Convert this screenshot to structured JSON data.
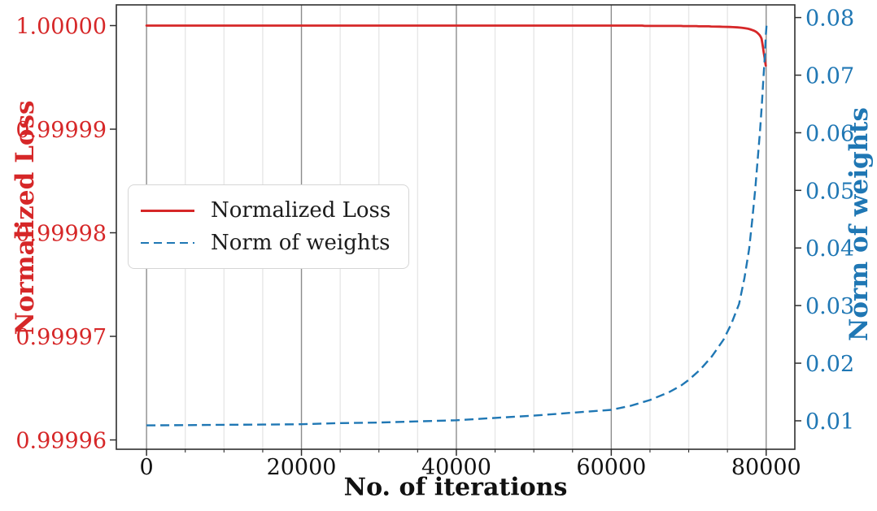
{
  "chart_data": {
    "type": "line",
    "title": "",
    "xlabel": "No. of iterations",
    "ylabel_left": "Normalized Loss",
    "ylabel_right": "Norm of weights",
    "xlim": [
      -3900,
      83700
    ],
    "ylim_left": [
      0.9999591,
      1.000002
    ],
    "ylim_right": [
      0.00506,
      0.0822
    ],
    "x_ticks": {
      "values": [
        0,
        20000,
        40000,
        60000,
        80000
      ],
      "labels": [
        "0",
        "20000",
        "40000",
        "60000",
        "80000"
      ]
    },
    "x_minor_ticks": [
      5000,
      10000,
      15000,
      25000,
      30000,
      35000,
      45000,
      50000,
      55000,
      65000,
      70000,
      75000
    ],
    "y_ticks_left": {
      "values": [
        1.0,
        0.99999,
        0.99998,
        0.99997,
        0.99996
      ],
      "labels": [
        "1.00000",
        "0.99999",
        "0.99998",
        "0.99997",
        "0.99996"
      ]
    },
    "y_ticks_right": {
      "values": [
        0.08,
        0.07,
        0.06,
        0.05,
        0.04,
        0.03,
        0.02,
        0.01
      ],
      "labels": [
        "0.08",
        "0.07",
        "0.06",
        "0.05",
        "0.04",
        "0.03",
        "0.02",
        "0.01"
      ]
    },
    "grid": {
      "axis": "x",
      "major": true,
      "minor": true
    },
    "colors": {
      "loss": "#d62728",
      "weights": "#1f77b4",
      "grid_major": "#8c8c8c",
      "grid_minor": "#e7e7e7",
      "spine": "#2e2e2e",
      "x_tick_label": "#111111",
      "legend_border": "#d6d6d6"
    },
    "legend": {
      "position": "upper left",
      "entries": [
        {
          "label": "Normalized Loss",
          "color": "#d62728",
          "style": "solid"
        },
        {
          "label": "Norm of weights",
          "color": "#1f77b4",
          "style": "dashed"
        }
      ]
    },
    "series": [
      {
        "name": "Normalized Loss",
        "axis": "left",
        "color": "#d62728",
        "style": "solid",
        "width": 2.8,
        "points": [
          [
            0,
            1.0
          ],
          [
            50000,
            1.0
          ],
          [
            64000,
            1.0
          ],
          [
            64300,
            0.99999997
          ],
          [
            69000,
            0.99999997
          ],
          [
            69300,
            0.99999995
          ],
          [
            71000,
            0.99999995
          ],
          [
            71300,
            0.99999993
          ],
          [
            72600,
            0.99999993
          ],
          [
            72900,
            0.99999991
          ],
          [
            74000,
            0.9999999
          ],
          [
            74400,
            0.99999988
          ],
          [
            75300,
            0.99999987
          ],
          [
            75700,
            0.99999985
          ],
          [
            76300,
            0.99999983
          ],
          [
            76800,
            0.9999998
          ],
          [
            77200,
            0.99999976
          ],
          [
            77600,
            0.99999971
          ],
          [
            77900,
            0.99999965
          ],
          [
            78200,
            0.99999958
          ],
          [
            78500,
            0.99999948
          ],
          [
            78750,
            0.99999937
          ],
          [
            78950,
            0.99999924
          ],
          [
            79150,
            0.99999908
          ],
          [
            79300,
            0.99999891
          ],
          [
            79400,
            0.99999874
          ],
          [
            79500,
            0.99999832
          ],
          [
            79600,
            0.99999783
          ],
          [
            79700,
            0.99999734
          ],
          [
            79800,
            0.99999686
          ],
          [
            79870,
            0.99999652
          ],
          [
            79920,
            0.99999627
          ],
          [
            79950,
            0.99999613
          ]
        ]
      },
      {
        "name": "Norm of weights",
        "axis": "right",
        "color": "#1f77b4",
        "style": "dashed",
        "width": 2.4,
        "points": [
          [
            0,
            0.0092
          ],
          [
            5000,
            0.00925
          ],
          [
            10000,
            0.0093
          ],
          [
            15000,
            0.00935
          ],
          [
            20000,
            0.0094
          ],
          [
            25000,
            0.0096
          ],
          [
            30000,
            0.0097
          ],
          [
            35000,
            0.0099
          ],
          [
            40000,
            0.0101
          ],
          [
            45000,
            0.0105
          ],
          [
            50000,
            0.0109
          ],
          [
            55000,
            0.0114
          ],
          [
            60000,
            0.0119
          ],
          [
            62500,
            0.0126
          ],
          [
            65000,
            0.0136
          ],
          [
            67500,
            0.015
          ],
          [
            69000,
            0.0161
          ],
          [
            70000,
            0.0171
          ],
          [
            71500,
            0.0189
          ],
          [
            73000,
            0.0212
          ],
          [
            74500,
            0.0241
          ],
          [
            75500,
            0.0268
          ],
          [
            76500,
            0.0303
          ],
          [
            77200,
            0.0348
          ],
          [
            77800,
            0.0398
          ],
          [
            78200,
            0.0448
          ],
          [
            78600,
            0.0503
          ],
          [
            78900,
            0.0553
          ],
          [
            79200,
            0.0603
          ],
          [
            79450,
            0.065
          ],
          [
            79650,
            0.0695
          ],
          [
            79820,
            0.0732
          ],
          [
            79950,
            0.0768
          ],
          [
            80050,
            0.0788
          ]
        ]
      }
    ]
  }
}
